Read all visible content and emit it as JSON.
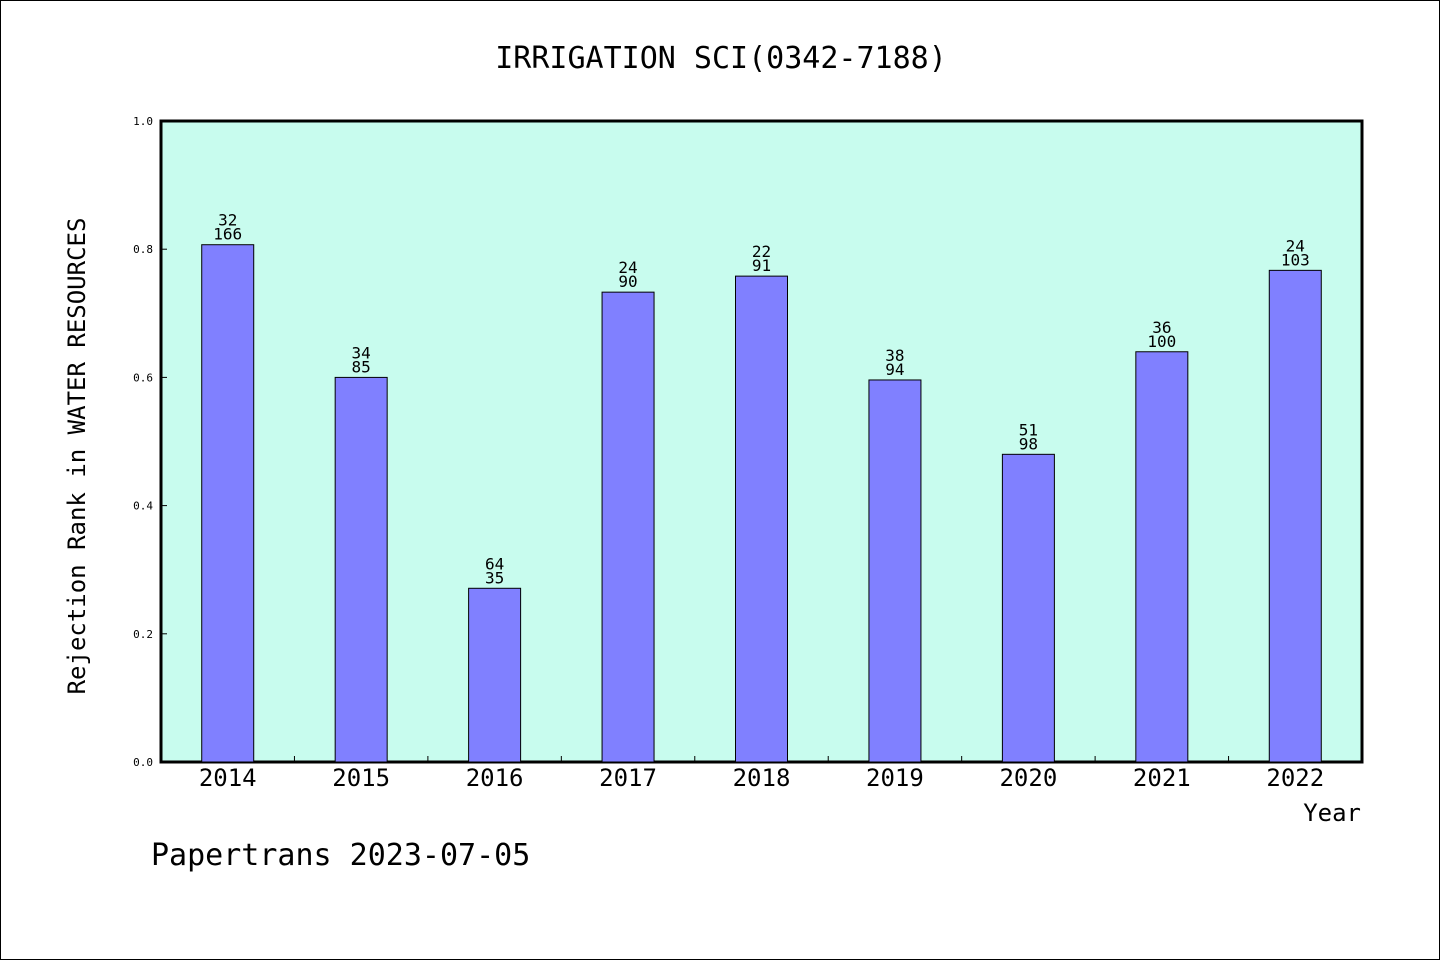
{
  "chart_data": {
    "type": "bar",
    "title": "IRRIGATION SCI(0342-7188)",
    "xlabel": "Year",
    "ylabel": "Rejection Rank in WATER RESOURCES",
    "categories": [
      "2014",
      "2015",
      "2016",
      "2017",
      "2018",
      "2019",
      "2020",
      "2021",
      "2022"
    ],
    "values": [
      0.807,
      0.6,
      0.271,
      0.733,
      0.758,
      0.596,
      0.48,
      0.64,
      0.767
    ],
    "labels_top": [
      "32",
      "34",
      "64",
      "24",
      "22",
      "38",
      "51",
      "36",
      "24"
    ],
    "labels_bottom": [
      "166",
      "85",
      "35",
      "90",
      "91",
      "94",
      "98",
      "100",
      "103"
    ],
    "ylim": [
      0.0,
      1.0
    ],
    "yticks": [
      "0.0",
      "0.2",
      "0.4",
      "0.6",
      "0.8",
      "1.0"
    ],
    "grid": false,
    "colors": {
      "plot_background": "#c8fcee",
      "bar_fill": "#8080ff",
      "bar_stroke": "#000000"
    }
  },
  "footer": "Papertrans 2023-07-05"
}
